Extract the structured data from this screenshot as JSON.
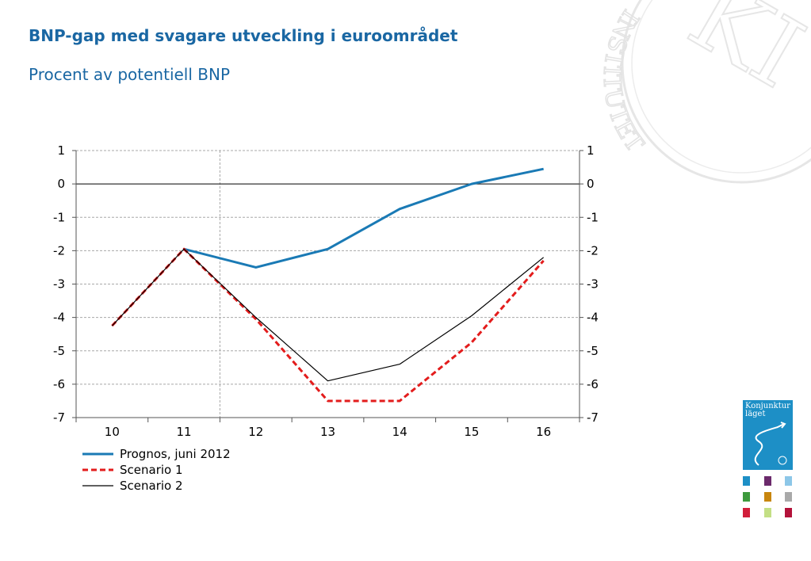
{
  "title": "BNP-gap med svagare utveckling i euroområdet",
  "subtitle": "Procent av potentiell BNP",
  "chart_data": {
    "type": "line",
    "x": [
      "10",
      "11",
      "12",
      "13",
      "14",
      "15",
      "16"
    ],
    "series": [
      {
        "name": "Prognos, juni 2012",
        "color": "#1a7ab5",
        "style": "solid",
        "values": [
          null,
          -1.95,
          -2.5,
          -1.95,
          -0.75,
          0.0,
          0.45
        ]
      },
      {
        "name": "Scenario 1",
        "color": "#e31c1c",
        "style": "dashed",
        "values": [
          -4.25,
          -1.95,
          -4.05,
          -6.5,
          -6.5,
          -4.75,
          -2.3
        ]
      },
      {
        "name": "Scenario 2",
        "color": "#000000",
        "style": "solid",
        "values": [
          -4.25,
          -1.95,
          -4.0,
          -5.9,
          -5.4,
          -3.95,
          -2.2
        ]
      }
    ],
    "ylim": [
      -7,
      1
    ],
    "yticks": [
      1,
      0,
      -1,
      -2,
      -3,
      -4,
      -5,
      -6,
      -7
    ],
    "xlabel": "",
    "ylabel": "",
    "grid": true,
    "secondary_y_axis": true,
    "legend_position": "bottom-left"
  },
  "branding": {
    "seal_text": "INSTITUTET",
    "cover_title": "Konjunktur läget"
  }
}
